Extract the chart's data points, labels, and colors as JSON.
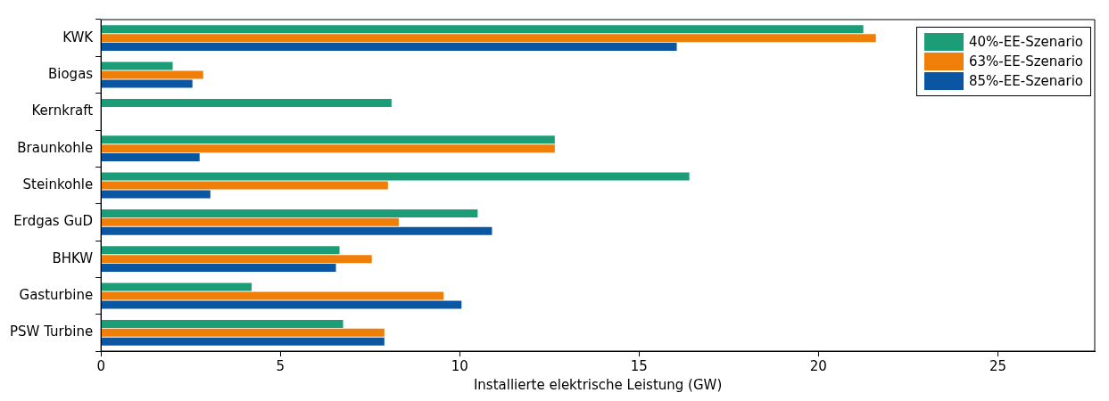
{
  "chart_data": {
    "type": "bar",
    "orientation": "horizontal",
    "xlabel": "Installierte elektrische Leistung (GW)",
    "categories": [
      "KWK",
      "Biogas",
      "Kernkraft",
      "Braunkohle",
      "Steinkohle",
      "Erdgas GuD",
      "BHKW",
      "Gasturbine",
      "PSW Turbine"
    ],
    "series": [
      {
        "name": "40%-EE-Szenario",
        "color": "#1b9e77",
        "values": [
          21.25,
          2.0,
          8.1,
          12.65,
          16.4,
          10.5,
          6.65,
          4.2,
          6.75
        ]
      },
      {
        "name": "63%-EE-Szenario",
        "color": "#f07f09",
        "values": [
          21.6,
          2.85,
          0,
          12.65,
          8.0,
          8.3,
          7.55,
          9.55,
          7.9
        ]
      },
      {
        "name": "85%-EE-Szenario",
        "color": "#0b56a3",
        "values": [
          16.05,
          2.55,
          0,
          2.75,
          3.05,
          10.9,
          6.55,
          10.05,
          7.9
        ]
      }
    ],
    "xlim": [
      0,
      27.7
    ],
    "xticks": [
      0,
      5,
      10,
      15,
      20,
      25
    ],
    "grid": false,
    "legend": "top right"
  }
}
